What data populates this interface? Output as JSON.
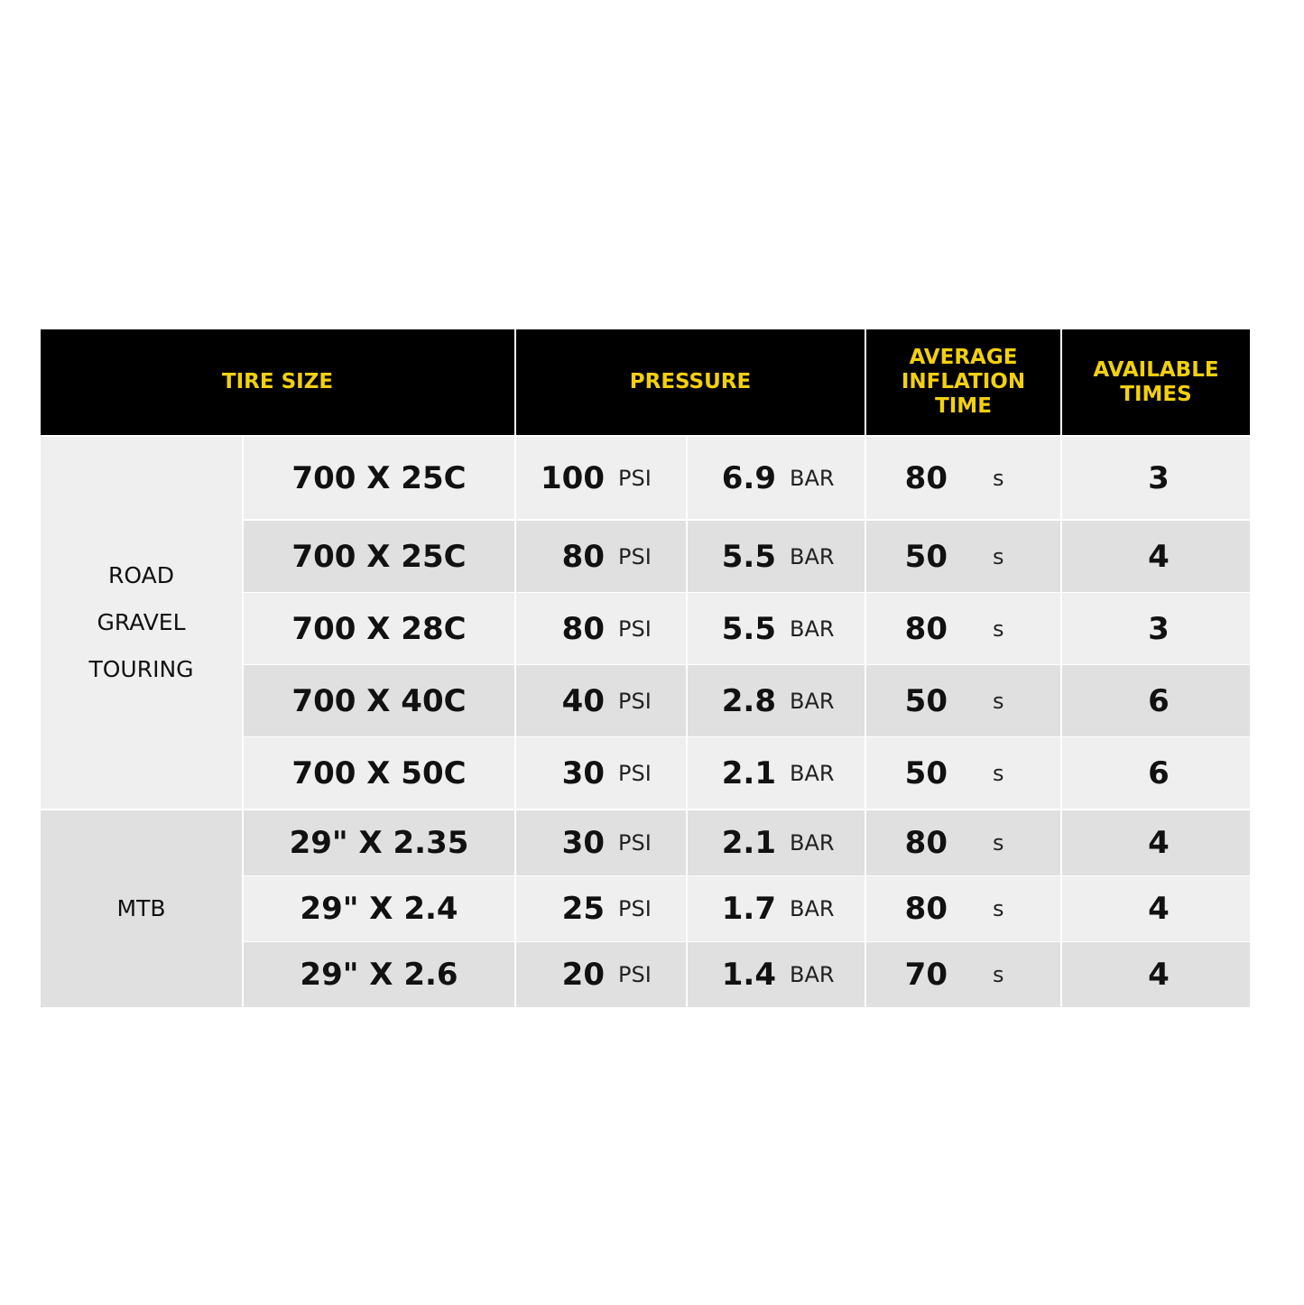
{
  "header": {
    "tire_size": "TIRE SIZE",
    "pressure": "PRESSURE",
    "avg_inflation_time": "AVERAGE\nINFLATION\nTIME",
    "available_times": "AVAILABLE\nTIMES"
  },
  "colors": {
    "header_bg": "#000000",
    "header_text": "#f2d00f",
    "row_light": "#efefef",
    "row_dark": "#e0e0e0"
  },
  "categories": [
    {
      "lines": [
        "ROAD",
        "GRAVEL",
        "TOURING"
      ]
    },
    {
      "lines": [
        "MTB"
      ]
    }
  ],
  "units": {
    "psi": "PSI",
    "bar": "BAR",
    "time": "s"
  },
  "rows": [
    {
      "size": "700 X 25C",
      "psi": "100",
      "bar": "6.9",
      "time": "80",
      "times": "3"
    },
    {
      "size": "700 X 25C",
      "psi": "80",
      "bar": "5.5",
      "time": "50",
      "times": "4"
    },
    {
      "size": "700 X 28C",
      "psi": "80",
      "bar": "5.5",
      "time": "80",
      "times": "3"
    },
    {
      "size": "700 X 40C",
      "psi": "40",
      "bar": "2.8",
      "time": "50",
      "times": "6"
    },
    {
      "size": "700 X 50C",
      "psi": "30",
      "bar": "2.1",
      "time": "50",
      "times": "6"
    },
    {
      "size": "29\" X 2.35",
      "psi": "30",
      "bar": "2.1",
      "time": "80",
      "times": "4"
    },
    {
      "size": "29\" X 2.4",
      "psi": "25",
      "bar": "1.7",
      "time": "80",
      "times": "4"
    },
    {
      "size": "29\" X 2.6",
      "psi": "20",
      "bar": "1.4",
      "time": "70",
      "times": "4"
    }
  ]
}
